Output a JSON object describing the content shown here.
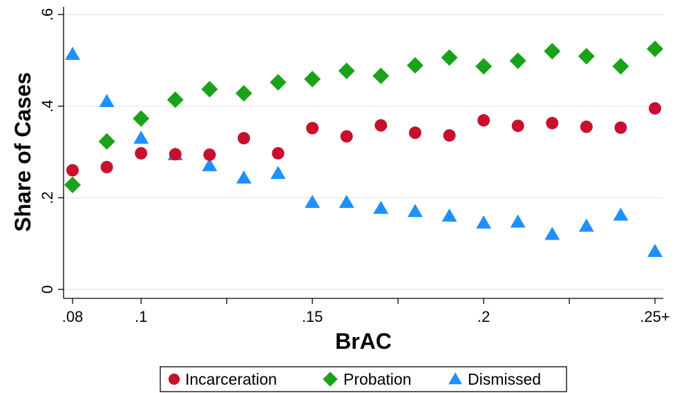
{
  "chart_data": {
    "type": "scatter",
    "xlabel": "BrAC",
    "ylabel": "Share of Cases",
    "xlim": [
      0.08,
      0.25
    ],
    "ylim": [
      0,
      0.6
    ],
    "x_ticks": [
      {
        "value": 0.08,
        "label": ".08"
      },
      {
        "value": 0.1,
        "label": ".1"
      },
      {
        "value": 0.15,
        "label": ".15"
      },
      {
        "value": 0.2,
        "label": ".2"
      },
      {
        "value": 0.25,
        "label": ".25+"
      }
    ],
    "x_minor_ticks": [
      0.125,
      0.175,
      0.225
    ],
    "y_ticks": [
      {
        "value": 0,
        "label": "0"
      },
      {
        "value": 0.2,
        "label": ".2"
      },
      {
        "value": 0.4,
        "label": ".4"
      },
      {
        "value": 0.6,
        "label": ".6"
      }
    ],
    "grid": true,
    "legend_position": "bottom",
    "series": [
      {
        "name": "Incarceration",
        "marker": "circle",
        "color": "#c8102e",
        "points": [
          [
            0.08,
            0.26
          ],
          [
            0.09,
            0.267
          ],
          [
            0.1,
            0.297
          ],
          [
            0.11,
            0.295
          ],
          [
            0.12,
            0.294
          ],
          [
            0.13,
            0.33
          ],
          [
            0.14,
            0.297
          ],
          [
            0.15,
            0.352
          ],
          [
            0.16,
            0.334
          ],
          [
            0.17,
            0.358
          ],
          [
            0.18,
            0.342
          ],
          [
            0.19,
            0.336
          ],
          [
            0.2,
            0.369
          ],
          [
            0.21,
            0.357
          ],
          [
            0.22,
            0.363
          ],
          [
            0.23,
            0.355
          ],
          [
            0.24,
            0.353
          ],
          [
            0.25,
            0.395
          ]
        ]
      },
      {
        "name": "Probation",
        "marker": "diamond",
        "color": "#1aa31a",
        "points": [
          [
            0.08,
            0.228
          ],
          [
            0.09,
            0.323
          ],
          [
            0.1,
            0.373
          ],
          [
            0.11,
            0.414
          ],
          [
            0.12,
            0.437
          ],
          [
            0.13,
            0.428
          ],
          [
            0.14,
            0.452
          ],
          [
            0.15,
            0.459
          ],
          [
            0.16,
            0.477
          ],
          [
            0.17,
            0.466
          ],
          [
            0.18,
            0.489
          ],
          [
            0.19,
            0.506
          ],
          [
            0.2,
            0.487
          ],
          [
            0.21,
            0.499
          ],
          [
            0.22,
            0.52
          ],
          [
            0.23,
            0.509
          ],
          [
            0.24,
            0.487
          ],
          [
            0.25,
            0.525
          ]
        ]
      },
      {
        "name": "Dismissed",
        "marker": "triangle",
        "color": "#1e90ff",
        "points": [
          [
            0.08,
            0.513
          ],
          [
            0.09,
            0.41
          ],
          [
            0.1,
            0.33
          ],
          [
            0.11,
            0.294
          ],
          [
            0.12,
            0.27
          ],
          [
            0.13,
            0.243
          ],
          [
            0.14,
            0.253
          ],
          [
            0.15,
            0.19
          ],
          [
            0.16,
            0.19
          ],
          [
            0.17,
            0.177
          ],
          [
            0.18,
            0.17
          ],
          [
            0.19,
            0.16
          ],
          [
            0.2,
            0.145
          ],
          [
            0.21,
            0.147
          ],
          [
            0.22,
            0.12
          ],
          [
            0.23,
            0.138
          ],
          [
            0.24,
            0.162
          ],
          [
            0.25,
            0.083
          ]
        ]
      }
    ]
  }
}
